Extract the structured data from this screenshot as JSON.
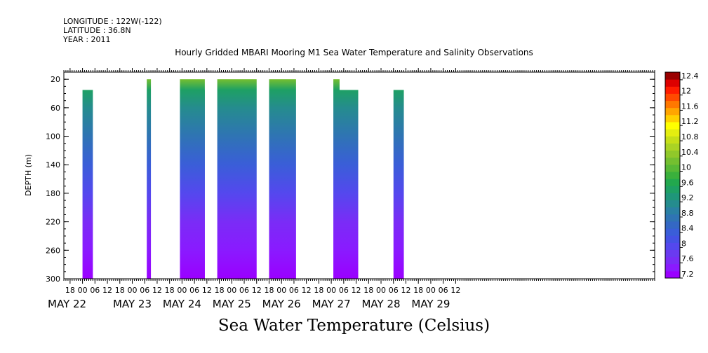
{
  "meta": {
    "longitude": "LONGITUDE : 122W(-122)",
    "latitude": "LATITUDE : 36.8N",
    "year": "YEAR : 2011"
  },
  "chart_data": {
    "type": "heatmap",
    "title": "Hourly Gridded MBARI Mooring M1 Sea Water Temperature and Salinity Observations",
    "xlabel": "Sea Water Temperature (Celsius)",
    "ylabel": "DEPTH (m)",
    "x_hour_ticks": [
      "18",
      "00",
      "06",
      "12",
      "18",
      "00",
      "06",
      "12",
      "18",
      "00",
      "06",
      "12",
      "18",
      "00",
      "06",
      "12",
      "18",
      "00",
      "06",
      "12",
      "18",
      "00",
      "06",
      "12",
      "18",
      "00",
      "06",
      "12",
      "18",
      "00",
      "06",
      "12"
    ],
    "x_day_labels": [
      "MAY 22",
      "MAY 23",
      "MAY 24",
      "MAY 25",
      "MAY 26",
      "MAY 27",
      "MAY 28",
      "MAY 29"
    ],
    "xlim_hours": [
      -9,
      276
    ],
    "x_tick_start_hour": 18,
    "x_tick_step_hours": 6,
    "y_ticks": [
      20,
      60,
      100,
      140,
      180,
      220,
      260,
      300
    ],
    "ylim": [
      10,
      300
    ],
    "y_reversed": true,
    "colorbar": {
      "min": 7.2,
      "max": 12.6,
      "step": 0.2,
      "tick_labels": [
        "12.4",
        "12",
        "11.6",
        "11.2",
        "10.8",
        "10.4",
        "10",
        "9.6",
        "9.2",
        "8.8",
        "8.4",
        "8",
        "7.6",
        "7.2"
      ],
      "tick_values": [
        12.4,
        12.0,
        11.6,
        11.2,
        10.8,
        10.4,
        10.0,
        9.6,
        9.2,
        8.8,
        8.4,
        8.0,
        7.6,
        7.2
      ],
      "colors": [
        "#9a00ff",
        "#8a1aff",
        "#7a2cf6",
        "#6a3af0",
        "#5448ee",
        "#4452e4",
        "#3a5ed8",
        "#3468c4",
        "#2f74b4",
        "#2a80a4",
        "#258c8e",
        "#1f967a",
        "#1ea064",
        "#22a84e",
        "#3ab03c",
        "#58b836",
        "#74bf30",
        "#90c82a",
        "#aad324",
        "#c6df18",
        "#e4ee10",
        "#ffff00",
        "#ffd000",
        "#ffa500",
        "#ff7800",
        "#ff4a00",
        "#ff1c00",
        "#dd0000",
        "#9a0000"
      ]
    },
    "profile_depths": [
      20,
      35,
      60,
      100,
      140,
      180,
      220,
      260,
      300
    ],
    "profile_temps": [
      10.4,
      9.7,
      9.3,
      8.8,
      8.5,
      8.1,
      7.8,
      7.5,
      7.3
    ],
    "segments": [
      {
        "start_hour": 0,
        "end_hour": 5,
        "top_depth": 35
      },
      {
        "start_hour": 31,
        "end_hour": 33,
        "top_depth": 20
      },
      {
        "start_hour": 47,
        "end_hour": 59,
        "top_depth": 20
      },
      {
        "start_hour": 53,
        "end_hour": 59,
        "top_depth": 35
      },
      {
        "start_hour": 65,
        "end_hour": 84,
        "top_depth": 20
      },
      {
        "start_hour": 90,
        "end_hour": 103,
        "top_depth": 20
      },
      {
        "start_hour": 121,
        "end_hour": 124,
        "top_depth": 20
      },
      {
        "start_hour": 123,
        "end_hour": 133,
        "top_depth": 35
      },
      {
        "start_hour": 150,
        "end_hour": 155,
        "top_depth": 35
      }
    ]
  }
}
